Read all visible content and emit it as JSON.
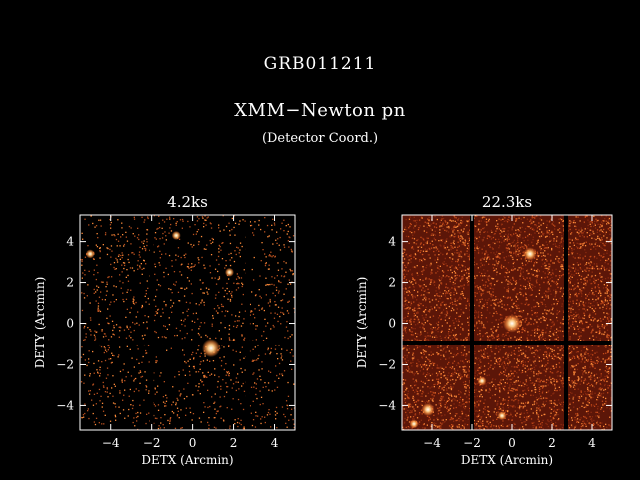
{
  "header": {
    "title": "GRB011211",
    "instrument": "XMM−Newton pn",
    "coord_note": "(Detector Coord.)"
  },
  "axis": {
    "xlabel": "DETX (Arcmin)",
    "ylabel": "DETY (Arcmin)",
    "x_ticks": [
      "−4",
      "−2",
      "0",
      "2",
      "4"
    ],
    "y_ticks": [
      "4",
      "2",
      "0",
      "−2",
      "−4"
    ],
    "x_range": [
      -5.5,
      5
    ],
    "y_range": [
      -5.2,
      5.3
    ]
  },
  "panels": [
    {
      "id": "left",
      "label": "4.2ks",
      "density": "sparse",
      "sources": [
        {
          "name": "src-grb-afterglow",
          "x": 0.9,
          "y": -1.2,
          "strength": "bright"
        },
        {
          "name": "src-a",
          "x": 1.8,
          "y": 2.5,
          "strength": "faint"
        },
        {
          "name": "src-b",
          "x": -0.8,
          "y": 4.3,
          "strength": "faint"
        },
        {
          "name": "src-c",
          "x": -5.0,
          "y": 3.4,
          "strength": "faint"
        }
      ]
    },
    {
      "id": "right",
      "label": "22.3ks",
      "density": "dense",
      "sources": [
        {
          "name": "src-grb-afterglow",
          "x": 0.0,
          "y": 0.0,
          "strength": "bright"
        },
        {
          "name": "src-a",
          "x": 0.9,
          "y": 3.4,
          "strength": "medium"
        },
        {
          "name": "src-c",
          "x": -4.2,
          "y": -4.2,
          "strength": "medium"
        },
        {
          "name": "src-d",
          "x": -4.9,
          "y": -4.9,
          "strength": "faint"
        },
        {
          "name": "src-e",
          "x": -0.5,
          "y": -4.5,
          "strength": "faint"
        },
        {
          "name": "src-f",
          "x": -1.5,
          "y": -2.8,
          "strength": "faint"
        }
      ]
    }
  ],
  "colors": {
    "background": "#000000",
    "photon": "#ff8c3a",
    "field": "#5c1608",
    "source_core": "#ffffff",
    "text": "#ffffff"
  }
}
